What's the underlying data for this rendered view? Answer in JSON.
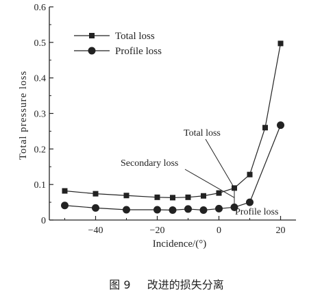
{
  "chart_data": {
    "type": "line",
    "xlabel": "Incidence/(°)",
    "ylabel": "Total pressure loss",
    "xlim": [
      -55,
      25
    ],
    "ylim": [
      0,
      0.6
    ],
    "xticks": [
      -40,
      -20,
      0,
      20
    ],
    "xtick_labels": [
      "−40",
      "−20",
      "0",
      "20"
    ],
    "yticks": [
      0,
      0.1,
      0.2,
      0.3,
      0.4,
      0.5,
      0.6
    ],
    "ytick_labels": [
      "0",
      "0.1",
      "0.2",
      "0.3",
      "0.4",
      "0.5",
      "0.6"
    ],
    "legend_position": "top-left",
    "series": [
      {
        "name": "Total loss",
        "marker": "square",
        "x": [
          -50,
          -40,
          -30,
          -20,
          -15,
          -10,
          -5,
          0,
          5,
          10,
          15,
          20
        ],
        "y": [
          0.082,
          0.074,
          0.069,
          0.064,
          0.063,
          0.064,
          0.068,
          0.076,
          0.09,
          0.128,
          0.26,
          0.497
        ]
      },
      {
        "name": "Profile loss",
        "marker": "circle",
        "x": [
          -50,
          -40,
          -30,
          -20,
          -15,
          -10,
          -5,
          0,
          5,
          10,
          20
        ],
        "y": [
          0.041,
          0.034,
          0.029,
          0.029,
          0.028,
          0.031,
          0.028,
          0.032,
          0.036,
          0.05,
          0.267
        ]
      }
    ],
    "annotations": [
      {
        "text": "Total loss",
        "target": {
          "x": 5,
          "y": 0.09
        }
      },
      {
        "text": "Secondary loss",
        "target": {
          "x": 5,
          "y": 0.063
        }
      },
      {
        "text": "Profile loss",
        "target": {
          "x": 5,
          "y": 0.036
        }
      }
    ]
  },
  "caption": {
    "figure_label": "图 9",
    "figure_title": "改进的损失分离"
  },
  "colors": {
    "ink": "#222222",
    "background": "#ffffff"
  }
}
